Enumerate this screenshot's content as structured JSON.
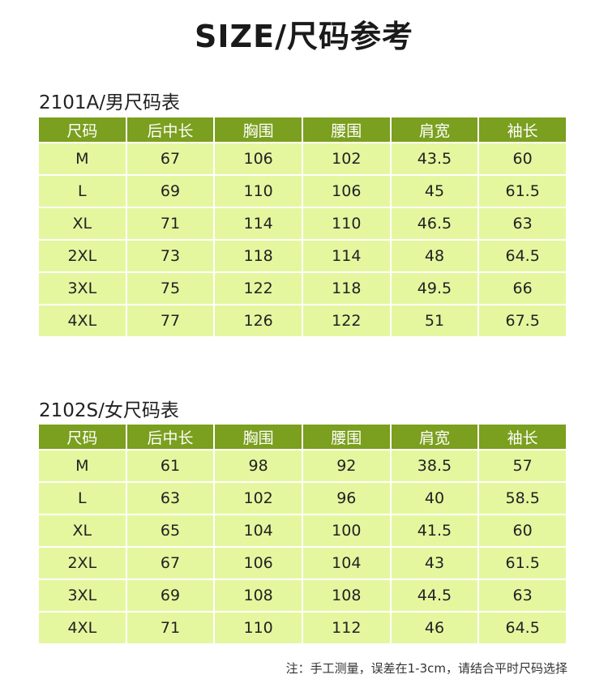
{
  "page": {
    "title": "SIZE/尺码参考"
  },
  "columns": [
    "尺码",
    "后中长",
    "胸围",
    "腰围",
    "肩宽",
    "袖长"
  ],
  "men": {
    "title": "2101A/男尺码表",
    "rows": [
      [
        "M",
        "67",
        "106",
        "102",
        "43.5",
        "60"
      ],
      [
        "L",
        "69",
        "110",
        "106",
        "45",
        "61.5"
      ],
      [
        "XL",
        "71",
        "114",
        "110",
        "46.5",
        "63"
      ],
      [
        "2XL",
        "73",
        "118",
        "114",
        "48",
        "64.5"
      ],
      [
        "3XL",
        "75",
        "122",
        "118",
        "49.5",
        "66"
      ],
      [
        "4XL",
        "77",
        "126",
        "122",
        "51",
        "67.5"
      ]
    ]
  },
  "women": {
    "title": "2102S/女尺码表",
    "rows": [
      [
        "M",
        "61",
        "98",
        "92",
        "38.5",
        "57"
      ],
      [
        "L",
        "63",
        "102",
        "96",
        "40",
        "58.5"
      ],
      [
        "XL",
        "65",
        "104",
        "100",
        "41.5",
        "60"
      ],
      [
        "2XL",
        "67",
        "106",
        "104",
        "43",
        "61.5"
      ],
      [
        "3XL",
        "69",
        "108",
        "108",
        "44.5",
        "63"
      ],
      [
        "4XL",
        "71",
        "110",
        "112",
        "46",
        "64.5"
      ]
    ]
  },
  "note": "注：手工测量，误差在1-3cm，请结合平时尺码选择",
  "colors": {
    "header_bg": "#7b9f1e",
    "cell_bg": "#e4f79f",
    "header_text": "#ffffff"
  }
}
